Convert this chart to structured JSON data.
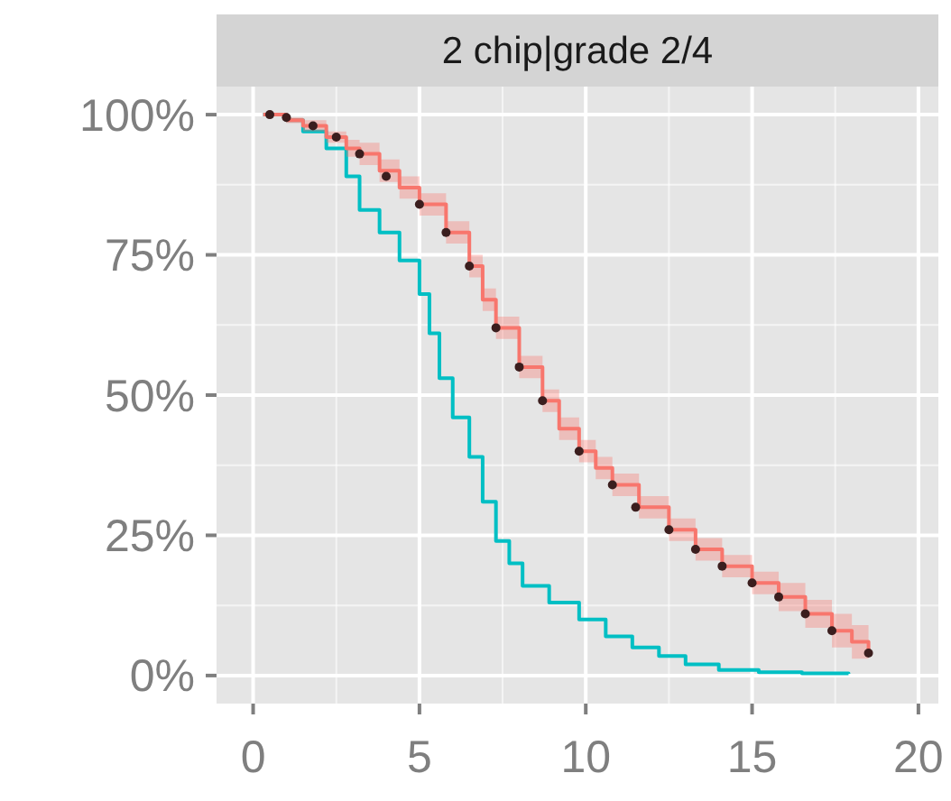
{
  "chart_data": {
    "type": "step",
    "title": "2 chip|grade 2/4",
    "xlim": [
      -1.1,
      20.6
    ],
    "xticks": [
      0,
      5,
      10,
      15,
      20
    ],
    "ylim": [
      -5,
      105
    ],
    "yticks": [
      {
        "value": 0,
        "label": "0%"
      },
      {
        "value": 25,
        "label": "25%"
      },
      {
        "value": 50,
        "label": "50%"
      },
      {
        "value": 75,
        "label": "75%"
      },
      {
        "value": 100,
        "label": "100%"
      }
    ],
    "grid": true,
    "series": [
      {
        "color": "#00bfc4",
        "x": [
          0.3,
          1,
          1.5,
          2.2,
          2.8,
          3.2,
          3.8,
          4.4,
          5,
          5.3,
          5.6,
          6,
          6.5,
          6.9,
          7.3,
          7.7,
          8.1,
          8.9,
          9.8,
          10.6,
          11.4,
          12.2,
          13,
          14,
          15.2,
          16.5,
          17.9
        ],
        "values": [
          100,
          99,
          97,
          94,
          89,
          83,
          79,
          74,
          68,
          61,
          53,
          46,
          39,
          31,
          24,
          20,
          16,
          13,
          10,
          7,
          5,
          3.5,
          2,
          1,
          0.6,
          0.4,
          0.3
        ]
      },
      {
        "color": "#f8766d",
        "x": [
          0.3,
          1,
          1.5,
          2.2,
          2.8,
          3.2,
          3.8,
          4.4,
          5,
          5.8,
          6.5,
          6.9,
          7.3,
          8,
          8.7,
          9.2,
          9.8,
          10.3,
          10.8,
          11.6,
          12.5,
          13.3,
          14.1,
          15,
          15.8,
          16.6,
          17.4,
          18,
          18.5
        ],
        "values": [
          100,
          99,
          98,
          96,
          94,
          93,
          90,
          87,
          84,
          79,
          73,
          67,
          62,
          55,
          49,
          44,
          40,
          37,
          34,
          30,
          26,
          22.5,
          19.5,
          16.5,
          14,
          11,
          8,
          6,
          4
        ],
        "lower": [
          100,
          98.5,
          97,
          95,
          92.5,
          91,
          88,
          85,
          82,
          77,
          71,
          65,
          60,
          53,
          47,
          42,
          38,
          35,
          32,
          28,
          24,
          20.5,
          17.5,
          14.5,
          11.5,
          8.5,
          5,
          3,
          1
        ],
        "upper": [
          100,
          99.5,
          99,
          97,
          95.5,
          95,
          92,
          89,
          86,
          81,
          75,
          69,
          64,
          57,
          51,
          46,
          42,
          39,
          36,
          32,
          28,
          24.5,
          21.5,
          18.5,
          16.5,
          13.5,
          11,
          9,
          7
        ]
      },
      {
        "type": "scatter",
        "marker": "circle",
        "color": "#3b1e1e",
        "x": [
          0.5,
          1,
          1.8,
          2.5,
          3.2,
          4,
          5,
          5.8,
          6.5,
          7.3,
          8,
          8.7,
          9.8,
          10.8,
          11.5,
          12.5,
          13.3,
          14.1,
          15,
          15.8,
          16.6,
          17.4,
          18.5
        ],
        "values": [
          100,
          99.5,
          98,
          96,
          93,
          89,
          84,
          79,
          73,
          62,
          55,
          49,
          40,
          34,
          30,
          26,
          22.5,
          19.5,
          16.5,
          14,
          11,
          8,
          4
        ]
      }
    ]
  }
}
